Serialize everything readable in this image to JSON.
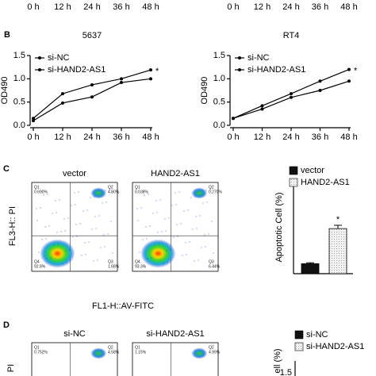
{
  "top_fragment": {
    "categories": [
      "0 h",
      "12 h",
      "24 h",
      "36 h",
      "48 h"
    ]
  },
  "panel_labels": {
    "b": "B",
    "c": "C",
    "d": "D"
  },
  "chart_data": [
    {
      "type": "line",
      "title": "5637",
      "ylabel": "OD490",
      "categories": [
        "0 h",
        "12 h",
        "24 h",
        "36 h",
        "48 h"
      ],
      "ylim": [
        0,
        1.5
      ],
      "yticks": [
        {
          "value": 0,
          "label": "0.0"
        },
        {
          "value": 0.5,
          "label": "0.5"
        },
        {
          "value": 1,
          "label": "1.0"
        },
        {
          "value": 1.5,
          "label": "1.5"
        }
      ],
      "series": [
        {
          "name": "si-NC",
          "color": "#000000",
          "values": [
            0.15,
            0.68,
            0.87,
            1.0,
            1.19
          ]
        },
        {
          "name": "si-HAND2-AS1",
          "color": "#000000",
          "values": [
            0.1,
            0.48,
            0.61,
            0.92,
            1.0
          ]
        }
      ],
      "annotation": "*"
    },
    {
      "type": "line",
      "title": "RT4",
      "ylabel": "OD490",
      "categories": [
        "0 h",
        "12 h",
        "24 h",
        "36 h",
        "48 h"
      ],
      "ylim": [
        0,
        1.5
      ],
      "yticks": [
        {
          "value": 0,
          "label": "0.0"
        },
        {
          "value": 0.5,
          "label": "0.5"
        },
        {
          "value": 1,
          "label": "1.0"
        },
        {
          "value": 1.5,
          "label": "1.5"
        }
      ],
      "series": [
        {
          "name": "si-NC",
          "color": "#000000",
          "values": [
            0.15,
            0.42,
            0.68,
            0.95,
            1.2
          ]
        },
        {
          "name": "si-HAND2-AS1",
          "color": "#000000",
          "values": [
            0.15,
            0.35,
            0.6,
            0.75,
            0.95
          ]
        }
      ],
      "annotation": "*"
    },
    {
      "type": "bar",
      "ylabel": "Apoptotic Cell (%)",
      "categories": [
        "vector",
        "HAND2-AS1"
      ],
      "values": [
        1.5,
        6.8
      ],
      "errors": [
        0.15,
        0.5
      ],
      "colors": [
        "#111111",
        "#e6e6e6"
      ],
      "ylim": [
        0,
        14
      ],
      "annotation": "*"
    }
  ],
  "flow_c": {
    "xlabel": "FL1-H::AV-FITC",
    "ylabel": "FL3-H:: PI",
    "plots": [
      {
        "title": "vector",
        "quadrants": [
          {
            "name": "Q1",
            "value": "0.690%"
          },
          {
            "name": "Q2",
            "value": "4.80%"
          },
          {
            "name": "Q3",
            "value": "1.68%"
          },
          {
            "name": "Q4",
            "value": "92.8%"
          }
        ]
      },
      {
        "title": "HAND2-AS1",
        "quadrants": [
          {
            "name": "Q1",
            "value": "0.038%"
          },
          {
            "name": "Q2",
            "value": "0.270%"
          },
          {
            "name": "Q3",
            "value": "6.44%"
          },
          {
            "name": "Q4",
            "value": "93.3%"
          }
        ]
      }
    ]
  },
  "panel_d": {
    "ylabel": "PI",
    "plots": [
      {
        "title": "si-NC",
        "quadrants": [
          {
            "name": "Q1",
            "value": "0.752%"
          },
          {
            "name": "Q2",
            "value": "4.58%"
          }
        ]
      },
      {
        "title": "si-HAND2-AS1",
        "quadrants": [
          {
            "name": "Q1",
            "value": "1.15%"
          },
          {
            "name": "Q2",
            "value": "4.99%"
          }
        ]
      }
    ],
    "legend": [
      "si-NC",
      "si-HAND2-AS1"
    ],
    "bar_ylabel": "ell (%)",
    "bar_tick": "1.5"
  }
}
